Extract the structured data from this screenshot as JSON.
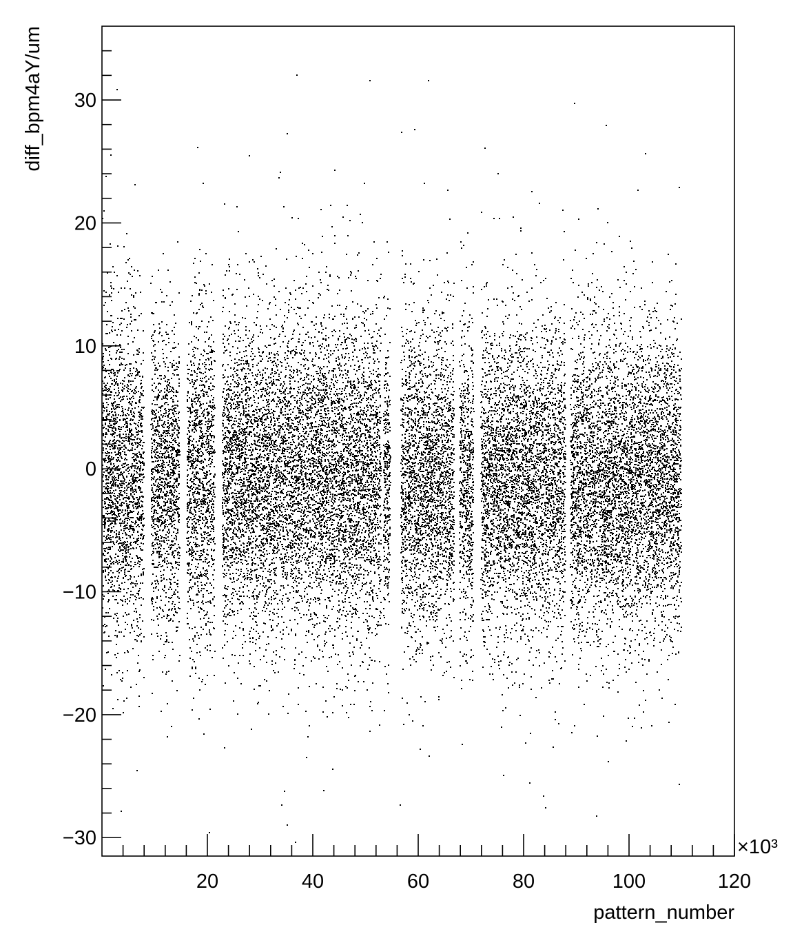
{
  "chart_data": {
    "type": "scatter",
    "title": "",
    "xlabel": "pattern_number",
    "ylabel": "diff_bpm4aY/um",
    "x_exponent_label": "×10³",
    "x_unit_multiplier": 1000,
    "xlim": [
      0,
      120
    ],
    "ylim": [
      -31.5,
      36
    ],
    "x_ticks": [
      20,
      40,
      60,
      80,
      100,
      120
    ],
    "x_tick_labels": [
      "20",
      "40",
      "60",
      "80",
      "100",
      "120"
    ],
    "y_ticks": [
      -30,
      -20,
      -10,
      0,
      10,
      20,
      30
    ],
    "y_tick_labels": [
      "−30",
      "−20",
      "−10",
      "0",
      "10",
      "20",
      "30"
    ],
    "grid": false,
    "legend": "none",
    "marker_color": "#000000",
    "series": [
      {
        "segments": [
          {
            "x_start": 0.0,
            "x_end": 7.8,
            "y_mean": -0.5,
            "y_sd": 6.2
          },
          {
            "x_start": 9.2,
            "x_end": 14.6,
            "y_mean": -1.0,
            "y_sd": 6.0
          },
          {
            "x_start": 16.0,
            "x_end": 21.3,
            "y_mean": -0.5,
            "y_sd": 6.5
          },
          {
            "x_start": 22.7,
            "x_end": 52.8,
            "y_mean": -0.5,
            "y_sd": 6.4
          },
          {
            "x_start": 53.3,
            "x_end": 54.6,
            "y_mean": -1.0,
            "y_sd": 6.0
          },
          {
            "x_start": 56.6,
            "x_end": 66.7,
            "y_mean": -1.0,
            "y_sd": 6.2
          },
          {
            "x_start": 67.7,
            "x_end": 70.4,
            "y_mean": -1.0,
            "y_sd": 6.3
          },
          {
            "x_start": 71.8,
            "x_end": 87.8,
            "y_mean": -1.0,
            "y_sd": 6.2
          },
          {
            "x_start": 88.8,
            "x_end": 109.8,
            "y_mean": -1.0,
            "y_sd": 6.2
          }
        ],
        "points_total": 24000,
        "outliers": [
          [
            61.8,
            31.6
          ],
          [
            89.5,
            29.8
          ],
          [
            95.5,
            28.0
          ],
          [
            18.0,
            26.2
          ],
          [
            35.0,
            27.3
          ],
          [
            56.7,
            27.4
          ],
          [
            103.0,
            25.7
          ],
          [
            81.0,
            -25.5
          ],
          [
            84.0,
            -27.5
          ],
          [
            56.5,
            -27.3
          ],
          [
            35.0,
            -28.9
          ],
          [
            34.5,
            -26.2
          ],
          [
            42.0,
            -26.1
          ],
          [
            93.7,
            -28.2
          ],
          [
            109.4,
            -25.6
          ],
          [
            6.5,
            -24.5
          ]
        ]
      }
    ]
  }
}
